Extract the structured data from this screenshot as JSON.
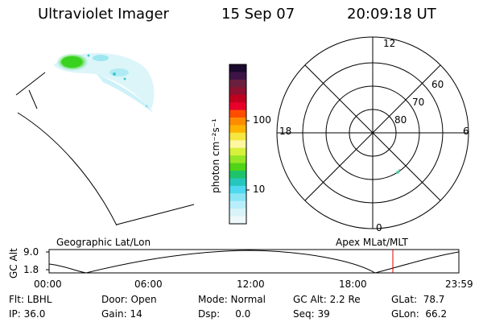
{
  "header": {
    "instrument": "Ultraviolet Imager",
    "date": "15 Sep 07",
    "time": "20:09:18 UT"
  },
  "colorbar": {
    "label": "photon cm⁻²s⁻¹",
    "ticks": [
      "100",
      "10"
    ],
    "colors": [
      "#1a0a2e",
      "#3d1446",
      "#6b1f3e",
      "#8e1230",
      "#c0001e",
      "#e8002a",
      "#ff4d00",
      "#ff8c00",
      "#ffb300",
      "#f5e642",
      "#fff7a0",
      "#d6f03c",
      "#96e628",
      "#4fd418",
      "#1ec36a",
      "#26c6bd",
      "#4fd9f0",
      "#8ae6f5",
      "#b8eefc",
      "#d9f4f8",
      "#eef7fa"
    ]
  },
  "polar": {
    "mlt_labels": [
      "12",
      "18",
      "6",
      "0"
    ],
    "lat_labels": [
      "60",
      "70",
      "80"
    ]
  },
  "timeline": {
    "left_title": "Geographic Lat/Lon",
    "right_title": "Apex MLat/MLT",
    "y_axis_label": "GC Alt",
    "y_ticks": [
      "9.0",
      "1.8"
    ],
    "x_ticks": [
      "00:00",
      "06:00",
      "12:00",
      "18:00",
      "23:59"
    ],
    "current_time": "20:09:18",
    "marker_color": "#dd0000"
  },
  "info": {
    "flt": "Flt: LBHL",
    "ip": "IP: 36.0",
    "door": "Door: Open",
    "gain": "Gain: 14",
    "mode": "Mode: Normal",
    "dsp": "Dsp:     0.0",
    "gcalt": "GC Alt: 2.2 Re",
    "seq": "Seq: 39",
    "glat": "GLat:  78.7",
    "glon": "GLon:  66.2"
  }
}
